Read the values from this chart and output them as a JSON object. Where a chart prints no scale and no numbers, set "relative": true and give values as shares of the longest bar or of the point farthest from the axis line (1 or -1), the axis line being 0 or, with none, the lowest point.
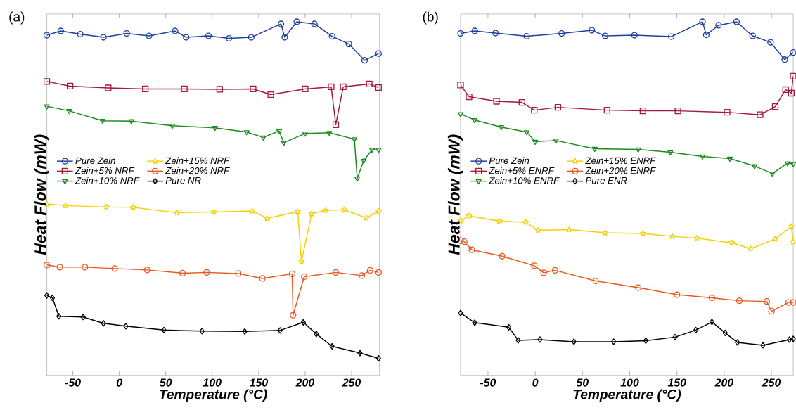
{
  "chart_data": [
    {
      "type": "line",
      "title": "(a)",
      "xlabel": "Temperature (°C)",
      "ylabel": "Heat  Flow (mW)",
      "relative": true,
      "xlim": [
        -78,
        280
      ],
      "xticks": [
        -50,
        0,
        50,
        100,
        150,
        200,
        250
      ],
      "legend": "left",
      "line_style": "solid",
      "series": [
        {
          "name": "Pure Zein",
          "color": "#1f3fa0",
          "marker": "circle",
          "x": [
            -78,
            -63,
            -42,
            -17,
            8,
            32,
            60,
            72,
            96,
            118,
            142,
            174,
            178,
            191,
            210,
            229,
            247,
            264,
            279
          ],
          "values": [
            0.962,
            0.974,
            0.965,
            0.956,
            0.967,
            0.96,
            0.974,
            0.956,
            0.96,
            0.953,
            0.956,
            0.994,
            0.956,
            1.0,
            0.994,
            0.959,
            0.937,
            0.891,
            0.91
          ]
        },
        {
          "name": "Zein+5% NRF",
          "color": "#a5193a",
          "marker": "square",
          "x": [
            -78,
            -53,
            -12,
            28,
            70,
            108,
            144,
            163,
            200,
            228,
            233,
            241,
            269,
            279
          ],
          "values": [
            0.831,
            0.818,
            0.813,
            0.81,
            0.81,
            0.809,
            0.81,
            0.794,
            0.81,
            0.816,
            0.709,
            0.816,
            0.824,
            0.814
          ]
        },
        {
          "name": "Zein+10% NRF",
          "color": "#1e8a1e",
          "marker": "triangle",
          "x": [
            -78,
            -54,
            -18,
            13,
            57,
            103,
            137,
            155,
            172,
            177,
            200,
            226,
            253,
            256,
            263,
            272,
            279
          ],
          "values": [
            0.761,
            0.748,
            0.72,
            0.719,
            0.706,
            0.7,
            0.688,
            0.673,
            0.691,
            0.658,
            0.684,
            0.686,
            0.668,
            0.557,
            0.607,
            0.638,
            0.638
          ]
        },
        {
          "name": "Zein+15% NRF",
          "color": "#f5d000",
          "marker": "star",
          "x": [
            -78,
            -58,
            -14,
            15,
            62,
            102,
            143,
            159,
            192,
            196,
            207,
            222,
            242,
            266,
            279
          ],
          "values": [
            0.485,
            0.48,
            0.476,
            0.475,
            0.46,
            0.462,
            0.465,
            0.444,
            0.463,
            0.322,
            0.457,
            0.467,
            0.468,
            0.445,
            0.464
          ]
        },
        {
          "name": "Zein+20% NRF",
          "color": "#e8561b",
          "marker": "circle",
          "x": [
            -78,
            -64,
            -37,
            -5,
            30,
            68,
            94,
            128,
            154,
            186,
            187,
            199,
            233,
            261,
            270,
            279
          ],
          "values": [
            0.312,
            0.306,
            0.306,
            0.302,
            0.298,
            0.289,
            0.291,
            0.288,
            0.274,
            0.287,
            0.17,
            0.279,
            0.291,
            0.282,
            0.297,
            0.291
          ]
        },
        {
          "name": "Pure NR",
          "color": "#000000",
          "marker": "diamond",
          "x": [
            -78,
            -72,
            -65,
            -39,
            -17,
            7,
            48,
            89,
            135,
            173,
            198,
            212,
            229,
            259,
            279
          ],
          "values": [
            0.226,
            0.219,
            0.167,
            0.165,
            0.147,
            0.139,
            0.128,
            0.125,
            0.124,
            0.127,
            0.15,
            0.117,
            0.082,
            0.063,
            0.048
          ]
        }
      ]
    },
    {
      "type": "line",
      "title": "(b)",
      "xlabel": "Temperature (°C)",
      "ylabel": "Heat  Flow (mW)",
      "relative": true,
      "xlim": [
        -79,
        273
      ],
      "xticks": [
        -50,
        0,
        50,
        100,
        150,
        200,
        250
      ],
      "legend": "left",
      "line_style": "solid",
      "series": [
        {
          "name": "Pure Zein",
          "color": "#1f3fa0",
          "marker": "circle",
          "x": [
            -79,
            -64,
            -42,
            -9,
            28,
            60,
            74,
            105,
            144,
            177,
            181,
            194,
            213,
            230,
            249,
            264,
            273
          ],
          "values": [
            0.967,
            0.974,
            0.968,
            0.959,
            0.967,
            0.976,
            0.96,
            0.962,
            0.958,
            1.0,
            0.963,
            0.99,
            1.0,
            0.96,
            0.942,
            0.893,
            0.913
          ]
        },
        {
          "name": "Zein+5% ENRF",
          "color": "#a5193a",
          "marker": "square",
          "x": [
            -79,
            -70,
            -41,
            -14,
            -1,
            24,
            76,
            114,
            151,
            203,
            238,
            254,
            265,
            271,
            273
          ],
          "values": [
            0.821,
            0.788,
            0.775,
            0.772,
            0.75,
            0.758,
            0.75,
            0.748,
            0.748,
            0.744,
            0.737,
            0.76,
            0.808,
            0.798,
            0.846
          ]
        },
        {
          "name": "Zein+10% ENRF",
          "color": "#1e8a1e",
          "marker": "triangle",
          "x": [
            -79,
            -64,
            -36,
            -9,
            0,
            22,
            63,
            109,
            143,
            177,
            206,
            232,
            251,
            267,
            273
          ],
          "values": [
            0.739,
            0.722,
            0.702,
            0.688,
            0.661,
            0.664,
            0.641,
            0.639,
            0.631,
            0.619,
            0.613,
            0.592,
            0.571,
            0.6,
            0.598
          ]
        },
        {
          "name": "Zein+15% ENRF",
          "color": "#f5d000",
          "marker": "star",
          "x": [
            -79,
            -70,
            -38,
            -10,
            3,
            36,
            74,
            114,
            145,
            171,
            208,
            228,
            254,
            271,
            273
          ],
          "values": [
            0.437,
            0.451,
            0.436,
            0.433,
            0.41,
            0.412,
            0.403,
            0.401,
            0.393,
            0.388,
            0.375,
            0.358,
            0.386,
            0.421,
            0.378
          ]
        },
        {
          "name": "Zein+20% ENRF",
          "color": "#e8561b",
          "marker": "circle",
          "x": [
            -79,
            -75,
            -67,
            -35,
            -1,
            9,
            21,
            64,
            109,
            150,
            187,
            216,
            245,
            250,
            268,
            273
          ],
          "values": [
            0.381,
            0.378,
            0.355,
            0.337,
            0.31,
            0.29,
            0.297,
            0.267,
            0.248,
            0.228,
            0.219,
            0.211,
            0.209,
            0.181,
            0.206,
            0.206
          ]
        },
        {
          "name": "Pure ENR",
          "color": "#000000",
          "marker": "diamond",
          "x": [
            -79,
            -64,
            -28,
            -18,
            5,
            41,
            83,
            117,
            148,
            170,
            187,
            201,
            214,
            241,
            269,
            273
          ],
          "values": [
            0.176,
            0.149,
            0.136,
            0.099,
            0.101,
            0.095,
            0.095,
            0.098,
            0.108,
            0.128,
            0.151,
            0.12,
            0.093,
            0.085,
            0.101,
            0.103
          ]
        }
      ]
    }
  ]
}
